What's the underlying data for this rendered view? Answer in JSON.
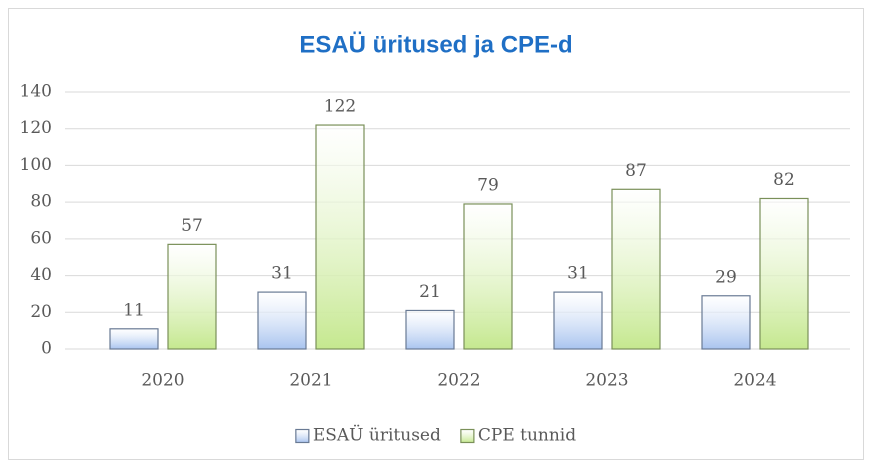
{
  "chart_data": {
    "type": "bar",
    "title": "ESAÜ üritused ja CPE-d",
    "categories": [
      "2020",
      "2021",
      "2022",
      "2023",
      "2024"
    ],
    "series": [
      {
        "name": "ESAÜ üritused",
        "color": "#a9c4ef",
        "values": [
          11,
          31,
          21,
          31,
          29
        ]
      },
      {
        "name": "CPE tunnid",
        "color": "#c5e88f",
        "values": [
          57,
          122,
          79,
          87,
          82
        ]
      }
    ],
    "ylim": [
      0,
      140
    ],
    "yticks": [
      0,
      20,
      40,
      60,
      80,
      100,
      120,
      140
    ],
    "grid": true,
    "legend": "bottom"
  }
}
